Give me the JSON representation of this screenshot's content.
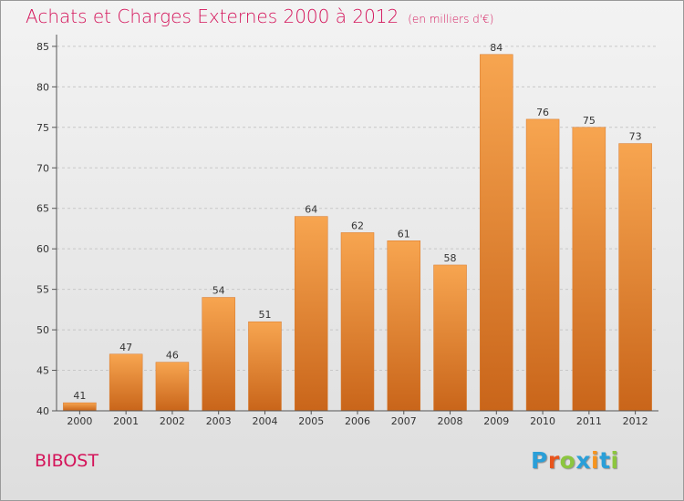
{
  "title": "Achats et Charges Externes 2000 à 2012",
  "unit": "(en milliers d'€)",
  "commune": "BIBOST",
  "logo": {
    "letters": [
      "P",
      "r",
      "o",
      "x",
      "i",
      "t",
      "i"
    ],
    "colors": [
      "#2a9fd8",
      "#e8541c",
      "#8cc63f",
      "#2a9fd8",
      "#f7941d",
      "#2a9fd8",
      "#8cc63f"
    ]
  },
  "chart_data": {
    "type": "bar",
    "title": "Achats et Charges Externes 2000 à 2012",
    "subtitle": "(en milliers d'€)",
    "xlabel": "",
    "ylabel": "",
    "categories": [
      "2000",
      "2001",
      "2002",
      "2003",
      "2004",
      "2005",
      "2006",
      "2007",
      "2008",
      "2009",
      "2010",
      "2011",
      "2012"
    ],
    "values": [
      41,
      47,
      46,
      54,
      51,
      64,
      62,
      61,
      58,
      84,
      76,
      75,
      73
    ],
    "ylim": [
      40,
      86
    ],
    "yticks": [
      40,
      45,
      50,
      55,
      60,
      65,
      70,
      75,
      80,
      85
    ],
    "grid": true,
    "bar_color_top": "#f7a550",
    "bar_color_bottom": "#c9651a",
    "legend": "none"
  }
}
